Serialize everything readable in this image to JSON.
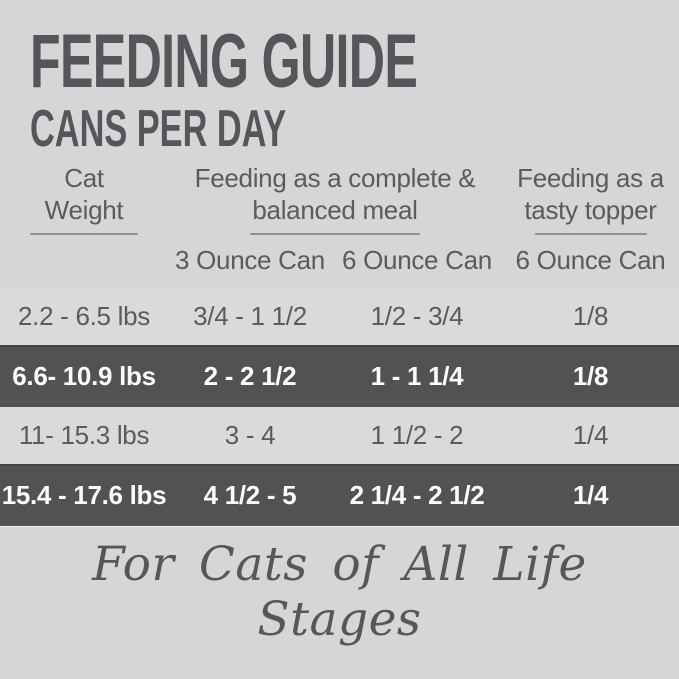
{
  "header": {
    "title": "FEEDING GUIDE",
    "subtitle": "CANS PER DAY"
  },
  "table": {
    "column_groups": [
      {
        "line1": "Cat",
        "line2": "Weight"
      },
      {
        "line1": "Feeding as a complete &",
        "line2": "balanced meal"
      },
      {
        "line1": "Feeding as a",
        "line2": "tasty topper"
      }
    ],
    "sub_columns": [
      "3 Ounce Can",
      "6 Ounce Can",
      "6 Ounce Can"
    ],
    "rows": [
      {
        "weight": "2.2 - 6.5 lbs",
        "meal_3oz": "3/4 - 1 1/2",
        "meal_6oz": "1/2 - 3/4",
        "topper_6oz": "1/8"
      },
      {
        "weight": "6.6- 10.9 lbs",
        "meal_3oz": "2 - 2 1/2",
        "meal_6oz": "1 - 1 1/4",
        "topper_6oz": "1/8"
      },
      {
        "weight": "11- 15.3 lbs",
        "meal_3oz": "3 - 4",
        "meal_6oz": "1 1/2 - 2",
        "topper_6oz": "1/4"
      },
      {
        "weight": "15.4 - 17.6 lbs",
        "meal_3oz": "4 1/2 - 5",
        "meal_6oz": "2 1/4 - 2 1/2",
        "topper_6oz": "1/4"
      }
    ]
  },
  "footer": {
    "tagline": "For Cats of All Life Stages"
  },
  "colors": {
    "background": "#d5d6d8",
    "highlight_row": "#515254",
    "title_text": "#55565a",
    "body_text": "#5a5b5e",
    "highlight_text": "#fafafa",
    "underline": "#8e8f91"
  }
}
